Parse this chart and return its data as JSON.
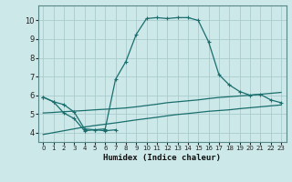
{
  "title": "",
  "xlabel": "Humidex (Indice chaleur)",
  "bg_color": "#cce8e8",
  "grid_color": "#aacccc",
  "line_color": "#1a6e6e",
  "xlim": [
    -0.5,
    23.5
  ],
  "ylim": [
    3.5,
    10.8
  ],
  "xticks": [
    0,
    1,
    2,
    3,
    4,
    5,
    6,
    7,
    8,
    9,
    10,
    11,
    12,
    13,
    14,
    15,
    16,
    17,
    18,
    19,
    20,
    21,
    22,
    23
  ],
  "yticks": [
    4,
    5,
    6,
    7,
    8,
    9,
    10
  ],
  "main_x": [
    0,
    1,
    2,
    3,
    4,
    5,
    6,
    7,
    8,
    9,
    10,
    11,
    12,
    13,
    14,
    15,
    16,
    17,
    18,
    19,
    20,
    21,
    22,
    23
  ],
  "main_y": [
    5.9,
    5.65,
    5.5,
    5.1,
    4.2,
    4.15,
    4.2,
    6.85,
    7.8,
    9.25,
    10.1,
    10.15,
    10.1,
    10.15,
    10.15,
    10.0,
    8.85,
    7.1,
    6.55,
    6.2,
    6.0,
    6.05,
    5.75,
    5.6
  ],
  "jagged_x": [
    0,
    1,
    2,
    3,
    4,
    5,
    6,
    7
  ],
  "jagged_y": [
    5.9,
    5.65,
    5.05,
    4.75,
    4.1,
    4.15,
    4.1,
    4.15
  ],
  "flat_upper_x": [
    0,
    1,
    2,
    3,
    4,
    5,
    6,
    7,
    8,
    9,
    10,
    11,
    12,
    13,
    14,
    15,
    16,
    17,
    18,
    19,
    20,
    21,
    22,
    23
  ],
  "flat_upper_y": [
    5.05,
    5.08,
    5.12,
    5.15,
    5.18,
    5.22,
    5.25,
    5.28,
    5.32,
    5.38,
    5.45,
    5.52,
    5.6,
    5.65,
    5.7,
    5.75,
    5.82,
    5.88,
    5.92,
    5.96,
    6.0,
    6.05,
    6.1,
    6.15
  ],
  "flat_lower_x": [
    0,
    1,
    2,
    3,
    4,
    5,
    6,
    7,
    8,
    9,
    10,
    11,
    12,
    13,
    14,
    15,
    16,
    17,
    18,
    19,
    20,
    21,
    22,
    23
  ],
  "flat_lower_y": [
    3.9,
    4.0,
    4.1,
    4.2,
    4.3,
    4.38,
    4.45,
    4.52,
    4.6,
    4.68,
    4.75,
    4.82,
    4.9,
    4.97,
    5.02,
    5.08,
    5.14,
    5.18,
    5.22,
    5.28,
    5.33,
    5.38,
    5.43,
    5.48
  ]
}
